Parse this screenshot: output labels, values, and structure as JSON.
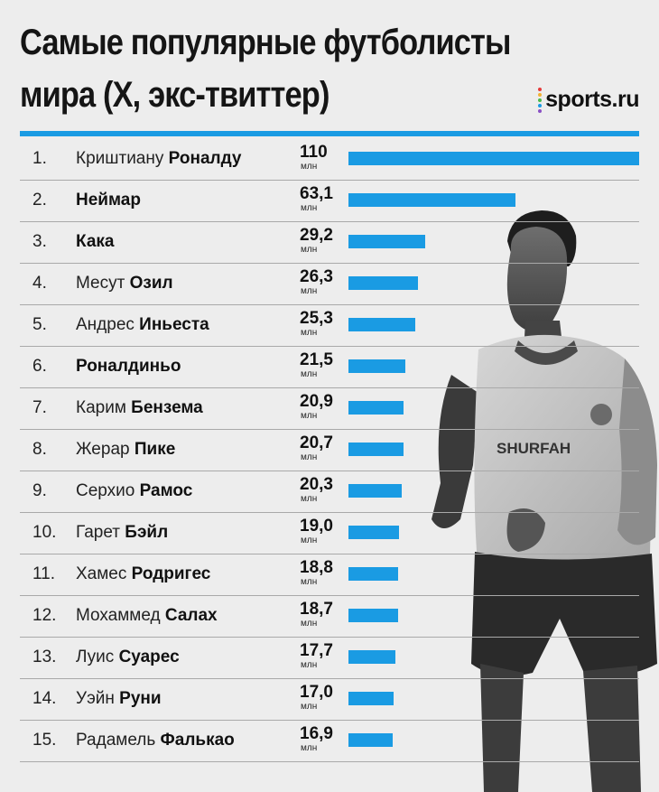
{
  "header": {
    "title": "Самые популярные футболисты\nмира (X, экс-твиттер)",
    "logo_text": "sports.ru"
  },
  "colors": {
    "bar": "#1a9be3",
    "rule": "#1a9be3",
    "logo_dots": [
      "#e63a3a",
      "#f2b233",
      "#4cb848",
      "#1a9be3",
      "#8a4fc4"
    ]
  },
  "photo": {
    "shirt_text": "SHURFAH"
  },
  "chart_data": {
    "type": "bar",
    "orientation": "horizontal",
    "title": "Самые популярные футболисты мира (X, экс-твиттер)",
    "unit": "млн",
    "xlim": [
      0,
      110
    ],
    "rows": [
      {
        "rank": "1.",
        "first": "Криштиану",
        "last": "Роналду",
        "label": "110",
        "value": 110
      },
      {
        "rank": "2.",
        "first": "",
        "last": "Неймар",
        "label": "63,1",
        "value": 63.1
      },
      {
        "rank": "3.",
        "first": "",
        "last": "Кака",
        "label": "29,2",
        "value": 29.2
      },
      {
        "rank": "4.",
        "first": "Месут",
        "last": "Озил",
        "label": "26,3",
        "value": 26.3
      },
      {
        "rank": "5.",
        "first": "Андрес",
        "last": "Иньеста",
        "label": "25,3",
        "value": 25.3
      },
      {
        "rank": "6.",
        "first": "",
        "last": "Роналдиньо",
        "label": "21,5",
        "value": 21.5
      },
      {
        "rank": "7.",
        "first": "Карим",
        "last": "Бензема",
        "label": "20,9",
        "value": 20.9
      },
      {
        "rank": "8.",
        "first": "Жерар",
        "last": "Пике",
        "label": "20,7",
        "value": 20.7
      },
      {
        "rank": "9.",
        "first": "Серхио",
        "last": "Рамос",
        "label": "20,3",
        "value": 20.3
      },
      {
        "rank": "10.",
        "first": "Гарет",
        "last": "Бэйл",
        "label": "19,0",
        "value": 19.0
      },
      {
        "rank": "11.",
        "first": "Хамес",
        "last": "Родригес",
        "label": "18,8",
        "value": 18.8
      },
      {
        "rank": "12.",
        "first": "Мохаммед",
        "last": "Салах",
        "label": "18,7",
        "value": 18.7
      },
      {
        "rank": "13.",
        "first": "Луис",
        "last": "Суарес",
        "label": "17,7",
        "value": 17.7
      },
      {
        "rank": "14.",
        "first": "Уэйн",
        "last": "Руни",
        "label": "17,0",
        "value": 17.0
      },
      {
        "rank": "15.",
        "first": "Радамель",
        "last": "Фалькао",
        "label": "16,9",
        "value": 16.9
      }
    ]
  }
}
